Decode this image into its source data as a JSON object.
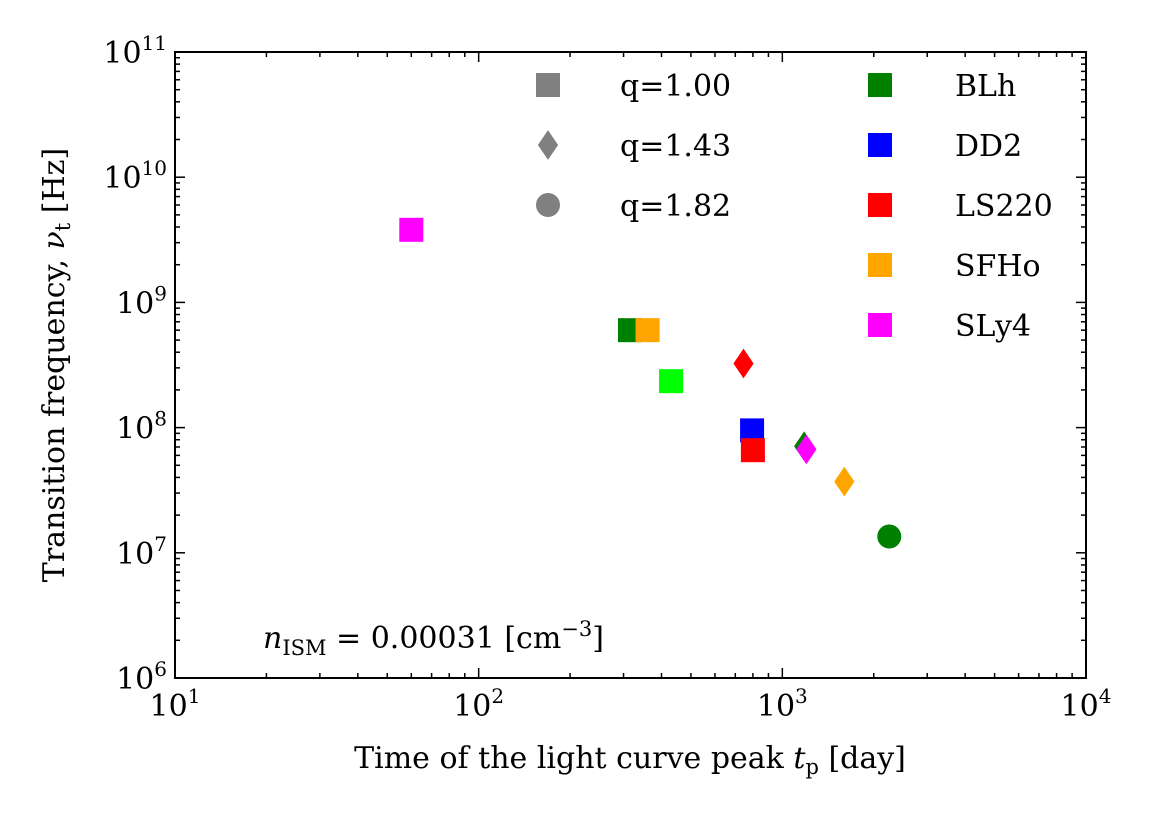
{
  "chart_data": {
    "type": "scatter",
    "xlabel": {
      "main": "Time of the light curve peak ",
      "var": "t",
      "sub": "p",
      "unit": " [day]"
    },
    "ylabel": {
      "main": "Transition frequency, ",
      "var": "ν",
      "sub": "t",
      "unit": " [Hz]"
    },
    "xscale": "log",
    "yscale": "log",
    "xlim": [
      10,
      10000
    ],
    "ylim": [
      1000000,
      100000000000
    ],
    "x_ticks": [
      {
        "value": 10,
        "base": "10",
        "exp": "1"
      },
      {
        "value": 100,
        "base": "10",
        "exp": "2"
      },
      {
        "value": 1000,
        "base": "10",
        "exp": "3"
      },
      {
        "value": 10000,
        "base": "10",
        "exp": "4"
      }
    ],
    "y_ticks": [
      {
        "value": 1000000,
        "base": "10",
        "exp": "6"
      },
      {
        "value": 10000000,
        "base": "10",
        "exp": "7"
      },
      {
        "value": 100000000,
        "base": "10",
        "exp": "8"
      },
      {
        "value": 1000000000,
        "base": "10",
        "exp": "9"
      },
      {
        "value": 10000000000,
        "base": "10",
        "exp": "10"
      },
      {
        "value": 100000000000,
        "base": "10",
        "exp": "11"
      }
    ],
    "grid": false,
    "annotation": {
      "var": "n",
      "sub": "ISM",
      "text": " = 0.00031 [cm",
      "sup": "−3",
      "close": "]",
      "placement": "bottom-left"
    },
    "legend_markers": {
      "placement": "top-center",
      "color": "#808080",
      "entries": [
        {
          "label": "q=1.00",
          "marker": "square"
        },
        {
          "label": "q=1.43",
          "marker": "diamond"
        },
        {
          "label": "q=1.82",
          "marker": "circle"
        }
      ]
    },
    "legend_eos": {
      "placement": "top-right",
      "marker": "square",
      "entries": [
        {
          "label": "BLh",
          "color": "#008000"
        },
        {
          "label": "DD2",
          "color": "#0000ff"
        },
        {
          "label": "LS220",
          "color": "#ff0000"
        },
        {
          "label": "SFHo",
          "color": "#ffa500"
        },
        {
          "label": "SLy4",
          "color": "#ff00ff"
        }
      ]
    },
    "points": [
      {
        "x": 60,
        "y": 3800000000,
        "marker": "square",
        "color": "#ff00ff"
      },
      {
        "x": 315,
        "y": 600000000,
        "marker": "square",
        "color": "#008000"
      },
      {
        "x": 360,
        "y": 600000000,
        "marker": "square",
        "color": "#ffa500"
      },
      {
        "x": 430,
        "y": 235000000,
        "marker": "square",
        "color": "#00ff00"
      },
      {
        "x": 745,
        "y": 325000000,
        "marker": "diamond",
        "color": "#ff0000"
      },
      {
        "x": 795,
        "y": 95000000,
        "marker": "square",
        "color": "#0000ff"
      },
      {
        "x": 800,
        "y": 66000000,
        "marker": "square",
        "color": "#ff0000"
      },
      {
        "x": 1180,
        "y": 71000000,
        "marker": "diamond",
        "color": "#008000"
      },
      {
        "x": 1200,
        "y": 67000000,
        "marker": "diamond",
        "color": "#ff00ff"
      },
      {
        "x": 1600,
        "y": 37000000,
        "marker": "diamond",
        "color": "#ffa500"
      },
      {
        "x": 2250,
        "y": 13500000,
        "marker": "circle",
        "color": "#008000"
      }
    ]
  }
}
